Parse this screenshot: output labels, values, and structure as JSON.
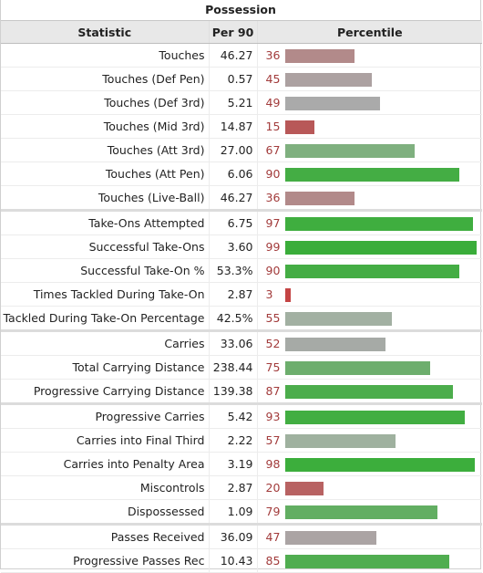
{
  "title": "Possession",
  "headers": {
    "stat": "Statistic",
    "per90": "Per 90",
    "percentile": "Percentile"
  },
  "rows": [
    {
      "stat": "Touches",
      "per90": "46.27",
      "pct": "36",
      "pct_value": 36,
      "color": "#b28a8a",
      "group_start": false
    },
    {
      "stat": "Touches (Def Pen)",
      "per90": "0.57",
      "pct": "45",
      "pct_value": 45,
      "color": "#aca1a1",
      "group_start": false
    },
    {
      "stat": "Touches (Def 3rd)",
      "per90": "5.21",
      "pct": "49",
      "pct_value": 49,
      "color": "#aaaaaa",
      "group_start": false
    },
    {
      "stat": "Touches (Mid 3rd)",
      "per90": "14.87",
      "pct": "15",
      "pct_value": 15,
      "color": "#b85858",
      "group_start": false
    },
    {
      "stat": "Touches (Att 3rd)",
      "per90": "27.00",
      "pct": "67",
      "pct_value": 67,
      "color": "#7fb07f",
      "group_start": false
    },
    {
      "stat": "Touches (Att Pen)",
      "per90": "6.06",
      "pct": "90",
      "pct_value": 90,
      "color": "#44ad44",
      "group_start": false
    },
    {
      "stat": "Touches (Live-Ball)",
      "per90": "46.27",
      "pct": "36",
      "pct_value": 36,
      "color": "#b28a8a",
      "group_start": false
    },
    {
      "stat": "Take-Ons Attempted",
      "per90": "6.75",
      "pct": "97",
      "pct_value": 97,
      "color": "#3fae3f",
      "group_start": true
    },
    {
      "stat": "Successful Take-Ons",
      "per90": "3.60",
      "pct": "99",
      "pct_value": 99,
      "color": "#3aad3a",
      "group_start": false
    },
    {
      "stat": "Successful Take-On %",
      "per90": "53.3%",
      "pct": "90",
      "pct_value": 90,
      "color": "#44ad44",
      "group_start": false
    },
    {
      "stat": "Times Tackled During Take-On",
      "per90": "2.87",
      "pct": "3",
      "pct_value": 3,
      "color": "#c44444",
      "group_start": false
    },
    {
      "stat": "Tackled During Take-On Percentage",
      "per90": "42.5%",
      "pct": "55",
      "pct_value": 55,
      "color": "#a2b0a2",
      "group_start": false
    },
    {
      "stat": "Carries",
      "per90": "33.06",
      "pct": "52",
      "pct_value": 52,
      "color": "#a6aaa6",
      "group_start": true
    },
    {
      "stat": "Total Carrying Distance",
      "per90": "238.44",
      "pct": "75",
      "pct_value": 75,
      "color": "#6dae6d",
      "group_start": false
    },
    {
      "stat": "Progressive Carrying Distance",
      "per90": "139.38",
      "pct": "87",
      "pct_value": 87,
      "color": "#4cad4c",
      "group_start": false
    },
    {
      "stat": "Progressive Carries",
      "per90": "5.42",
      "pct": "93",
      "pct_value": 93,
      "color": "#42ae42",
      "group_start": true
    },
    {
      "stat": "Carries into Final Third",
      "per90": "2.22",
      "pct": "57",
      "pct_value": 57,
      "color": "#9fb19f",
      "group_start": false
    },
    {
      "stat": "Carries into Penalty Area",
      "per90": "3.19",
      "pct": "98",
      "pct_value": 98,
      "color": "#3cae3c",
      "group_start": false
    },
    {
      "stat": "Miscontrols",
      "per90": "2.87",
      "pct": "20",
      "pct_value": 20,
      "color": "#b86262",
      "group_start": false
    },
    {
      "stat": "Dispossessed",
      "per90": "1.09",
      "pct": "79",
      "pct_value": 79,
      "color": "#62ae62",
      "group_start": false
    },
    {
      "stat": "Passes Received",
      "per90": "36.09",
      "pct": "47",
      "pct_value": 47,
      "color": "#aba4a4",
      "group_start": true
    },
    {
      "stat": "Progressive Passes Rec",
      "per90": "10.43",
      "pct": "85",
      "pct_value": 85,
      "color": "#50ad50",
      "group_start": false
    }
  ]
}
